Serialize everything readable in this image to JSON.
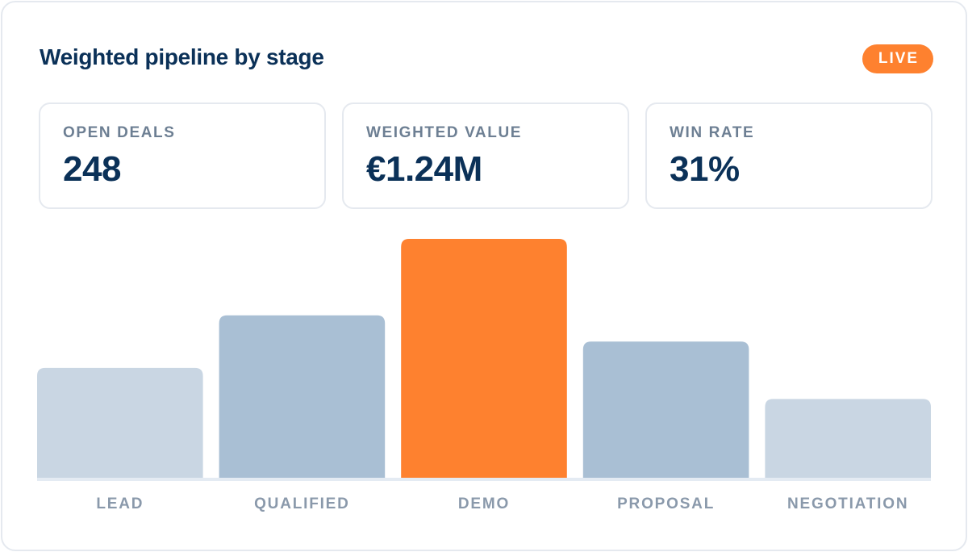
{
  "header": {
    "title": "Weighted pipeline by stage",
    "badge": "LIVE"
  },
  "kpis": [
    {
      "label": "OPEN DEALS",
      "value": "248"
    },
    {
      "label": "WEIGHTED VALUE",
      "value": "€1.24M"
    },
    {
      "label": "WIN RATE",
      "value": "31%"
    }
  ],
  "colors": {
    "accent": "#fe812f",
    "bar_light": "#c9d6e3",
    "bar_mid": "#a9bfd4",
    "baseline": "#e4ebf3"
  },
  "chart_data": {
    "type": "bar",
    "categories": [
      "LEAD",
      "QUALIFIED",
      "DEMO",
      "PROPOSAL",
      "NEGOTIATION"
    ],
    "values": [
      46,
      68,
      100,
      57,
      33
    ],
    "highlight_index": 2,
    "bar_colors": [
      "#c9d6e3",
      "#a9bfd4",
      "#fe812f",
      "#a9bfd4",
      "#c9d6e3"
    ],
    "ylim": [
      0,
      100
    ],
    "grid": false,
    "legend": "none"
  }
}
